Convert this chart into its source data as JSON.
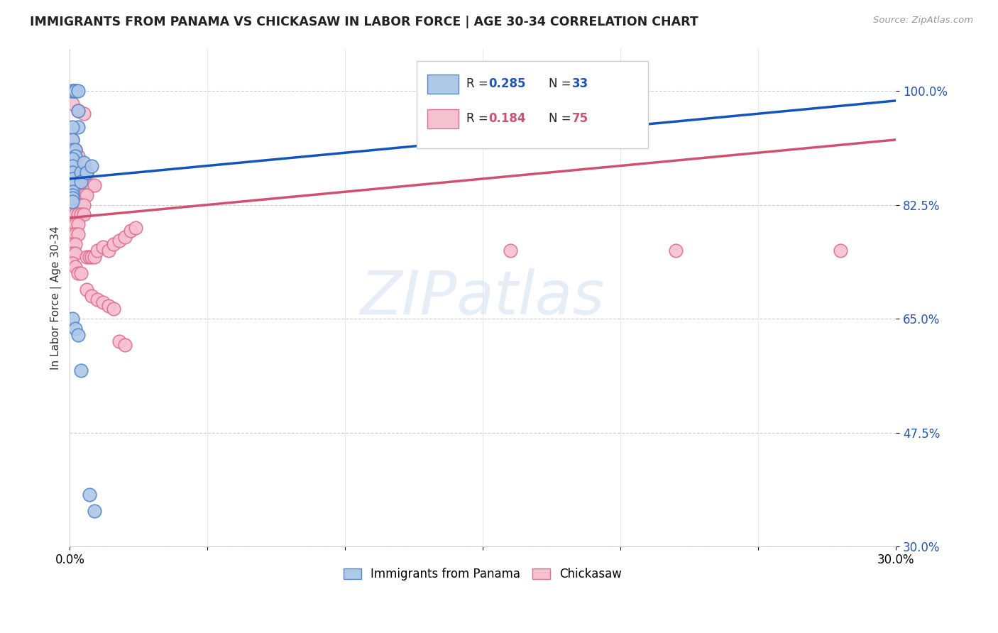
{
  "title": "IMMIGRANTS FROM PANAMA VS CHICKASAW IN LABOR FORCE | AGE 30-34 CORRELATION CHART",
  "source": "Source: ZipAtlas.com",
  "ylabel": "In Labor Force | Age 30-34",
  "xlim": [
    0.0,
    0.3
  ],
  "ylim": [
    0.3,
    1.065
  ],
  "yticks": [
    0.3,
    0.475,
    0.65,
    0.825,
    1.0
  ],
  "ytick_labels": [
    "30.0%",
    "47.5%",
    "65.0%",
    "82.5%",
    "100.0%"
  ],
  "xticks": [
    0.0,
    0.05,
    0.1,
    0.15,
    0.2,
    0.25,
    0.3
  ],
  "xtick_labels": [
    "0.0%",
    "",
    "",
    "",
    "",
    "",
    "30.0%"
  ],
  "panama_fill_color": "#aec8e8",
  "panama_edge_color": "#5588cc",
  "chickasaw_fill_color": "#f5c0d0",
  "chickasaw_edge_color": "#e07090",
  "panama_line_color": "#1155bb",
  "chickasaw_line_color": "#d05070",
  "watermark_text": "ZIPatlas",
  "panama_points": [
    [
      0.001,
      1.0
    ],
    [
      0.001,
      1.0
    ],
    [
      0.002,
      1.0
    ],
    [
      0.002,
      1.0
    ],
    [
      0.002,
      1.0
    ],
    [
      0.003,
      1.0
    ],
    [
      0.003,
      0.97
    ],
    [
      0.003,
      0.945
    ],
    [
      0.001,
      0.945
    ],
    [
      0.001,
      0.925
    ],
    [
      0.001,
      0.91
    ],
    [
      0.002,
      0.91
    ],
    [
      0.002,
      0.9
    ],
    [
      0.001,
      0.895
    ],
    [
      0.001,
      0.885
    ],
    [
      0.001,
      0.875
    ],
    [
      0.001,
      0.865
    ],
    [
      0.001,
      0.855
    ],
    [
      0.001,
      0.845
    ],
    [
      0.001,
      0.84
    ],
    [
      0.001,
      0.835
    ],
    [
      0.001,
      0.83
    ],
    [
      0.004,
      0.875
    ],
    [
      0.004,
      0.86
    ],
    [
      0.005,
      0.89
    ],
    [
      0.006,
      0.875
    ],
    [
      0.008,
      0.885
    ],
    [
      0.001,
      0.65
    ],
    [
      0.002,
      0.635
    ],
    [
      0.003,
      0.625
    ],
    [
      0.004,
      0.57
    ],
    [
      0.007,
      0.38
    ],
    [
      0.009,
      0.355
    ]
  ],
  "chickasaw_points": [
    [
      0.001,
      0.98
    ],
    [
      0.003,
      0.97
    ],
    [
      0.005,
      0.965
    ],
    [
      0.001,
      0.925
    ],
    [
      0.002,
      0.91
    ],
    [
      0.003,
      0.9
    ],
    [
      0.001,
      0.895
    ],
    [
      0.002,
      0.885
    ],
    [
      0.003,
      0.875
    ],
    [
      0.004,
      0.875
    ],
    [
      0.005,
      0.875
    ],
    [
      0.006,
      0.875
    ],
    [
      0.001,
      0.86
    ],
    [
      0.002,
      0.86
    ],
    [
      0.003,
      0.86
    ],
    [
      0.004,
      0.855
    ],
    [
      0.005,
      0.855
    ],
    [
      0.006,
      0.855
    ],
    [
      0.007,
      0.855
    ],
    [
      0.008,
      0.855
    ],
    [
      0.009,
      0.855
    ],
    [
      0.001,
      0.845
    ],
    [
      0.002,
      0.845
    ],
    [
      0.003,
      0.845
    ],
    [
      0.004,
      0.84
    ],
    [
      0.005,
      0.84
    ],
    [
      0.006,
      0.84
    ],
    [
      0.001,
      0.825
    ],
    [
      0.002,
      0.825
    ],
    [
      0.003,
      0.825
    ],
    [
      0.004,
      0.825
    ],
    [
      0.005,
      0.825
    ],
    [
      0.001,
      0.81
    ],
    [
      0.002,
      0.81
    ],
    [
      0.003,
      0.81
    ],
    [
      0.004,
      0.81
    ],
    [
      0.005,
      0.81
    ],
    [
      0.001,
      0.795
    ],
    [
      0.002,
      0.795
    ],
    [
      0.003,
      0.795
    ],
    [
      0.001,
      0.78
    ],
    [
      0.002,
      0.78
    ],
    [
      0.003,
      0.78
    ],
    [
      0.001,
      0.765
    ],
    [
      0.002,
      0.765
    ],
    [
      0.001,
      0.75
    ],
    [
      0.002,
      0.75
    ],
    [
      0.001,
      0.735
    ],
    [
      0.002,
      0.73
    ],
    [
      0.003,
      0.72
    ],
    [
      0.004,
      0.72
    ],
    [
      0.006,
      0.745
    ],
    [
      0.007,
      0.745
    ],
    [
      0.008,
      0.745
    ],
    [
      0.009,
      0.745
    ],
    [
      0.01,
      0.755
    ],
    [
      0.012,
      0.76
    ],
    [
      0.014,
      0.755
    ],
    [
      0.016,
      0.765
    ],
    [
      0.018,
      0.77
    ],
    [
      0.02,
      0.775
    ],
    [
      0.022,
      0.785
    ],
    [
      0.024,
      0.79
    ],
    [
      0.006,
      0.695
    ],
    [
      0.008,
      0.685
    ],
    [
      0.01,
      0.68
    ],
    [
      0.012,
      0.675
    ],
    [
      0.014,
      0.67
    ],
    [
      0.016,
      0.665
    ],
    [
      0.018,
      0.615
    ],
    [
      0.02,
      0.61
    ],
    [
      0.16,
      0.755
    ],
    [
      0.22,
      0.755
    ],
    [
      0.28,
      0.755
    ]
  ],
  "pan_line_x": [
    0.0,
    0.3
  ],
  "pan_line_y": [
    0.865,
    0.985
  ],
  "chick_line_x": [
    0.0,
    0.3
  ],
  "chick_line_y": [
    0.805,
    0.925
  ]
}
